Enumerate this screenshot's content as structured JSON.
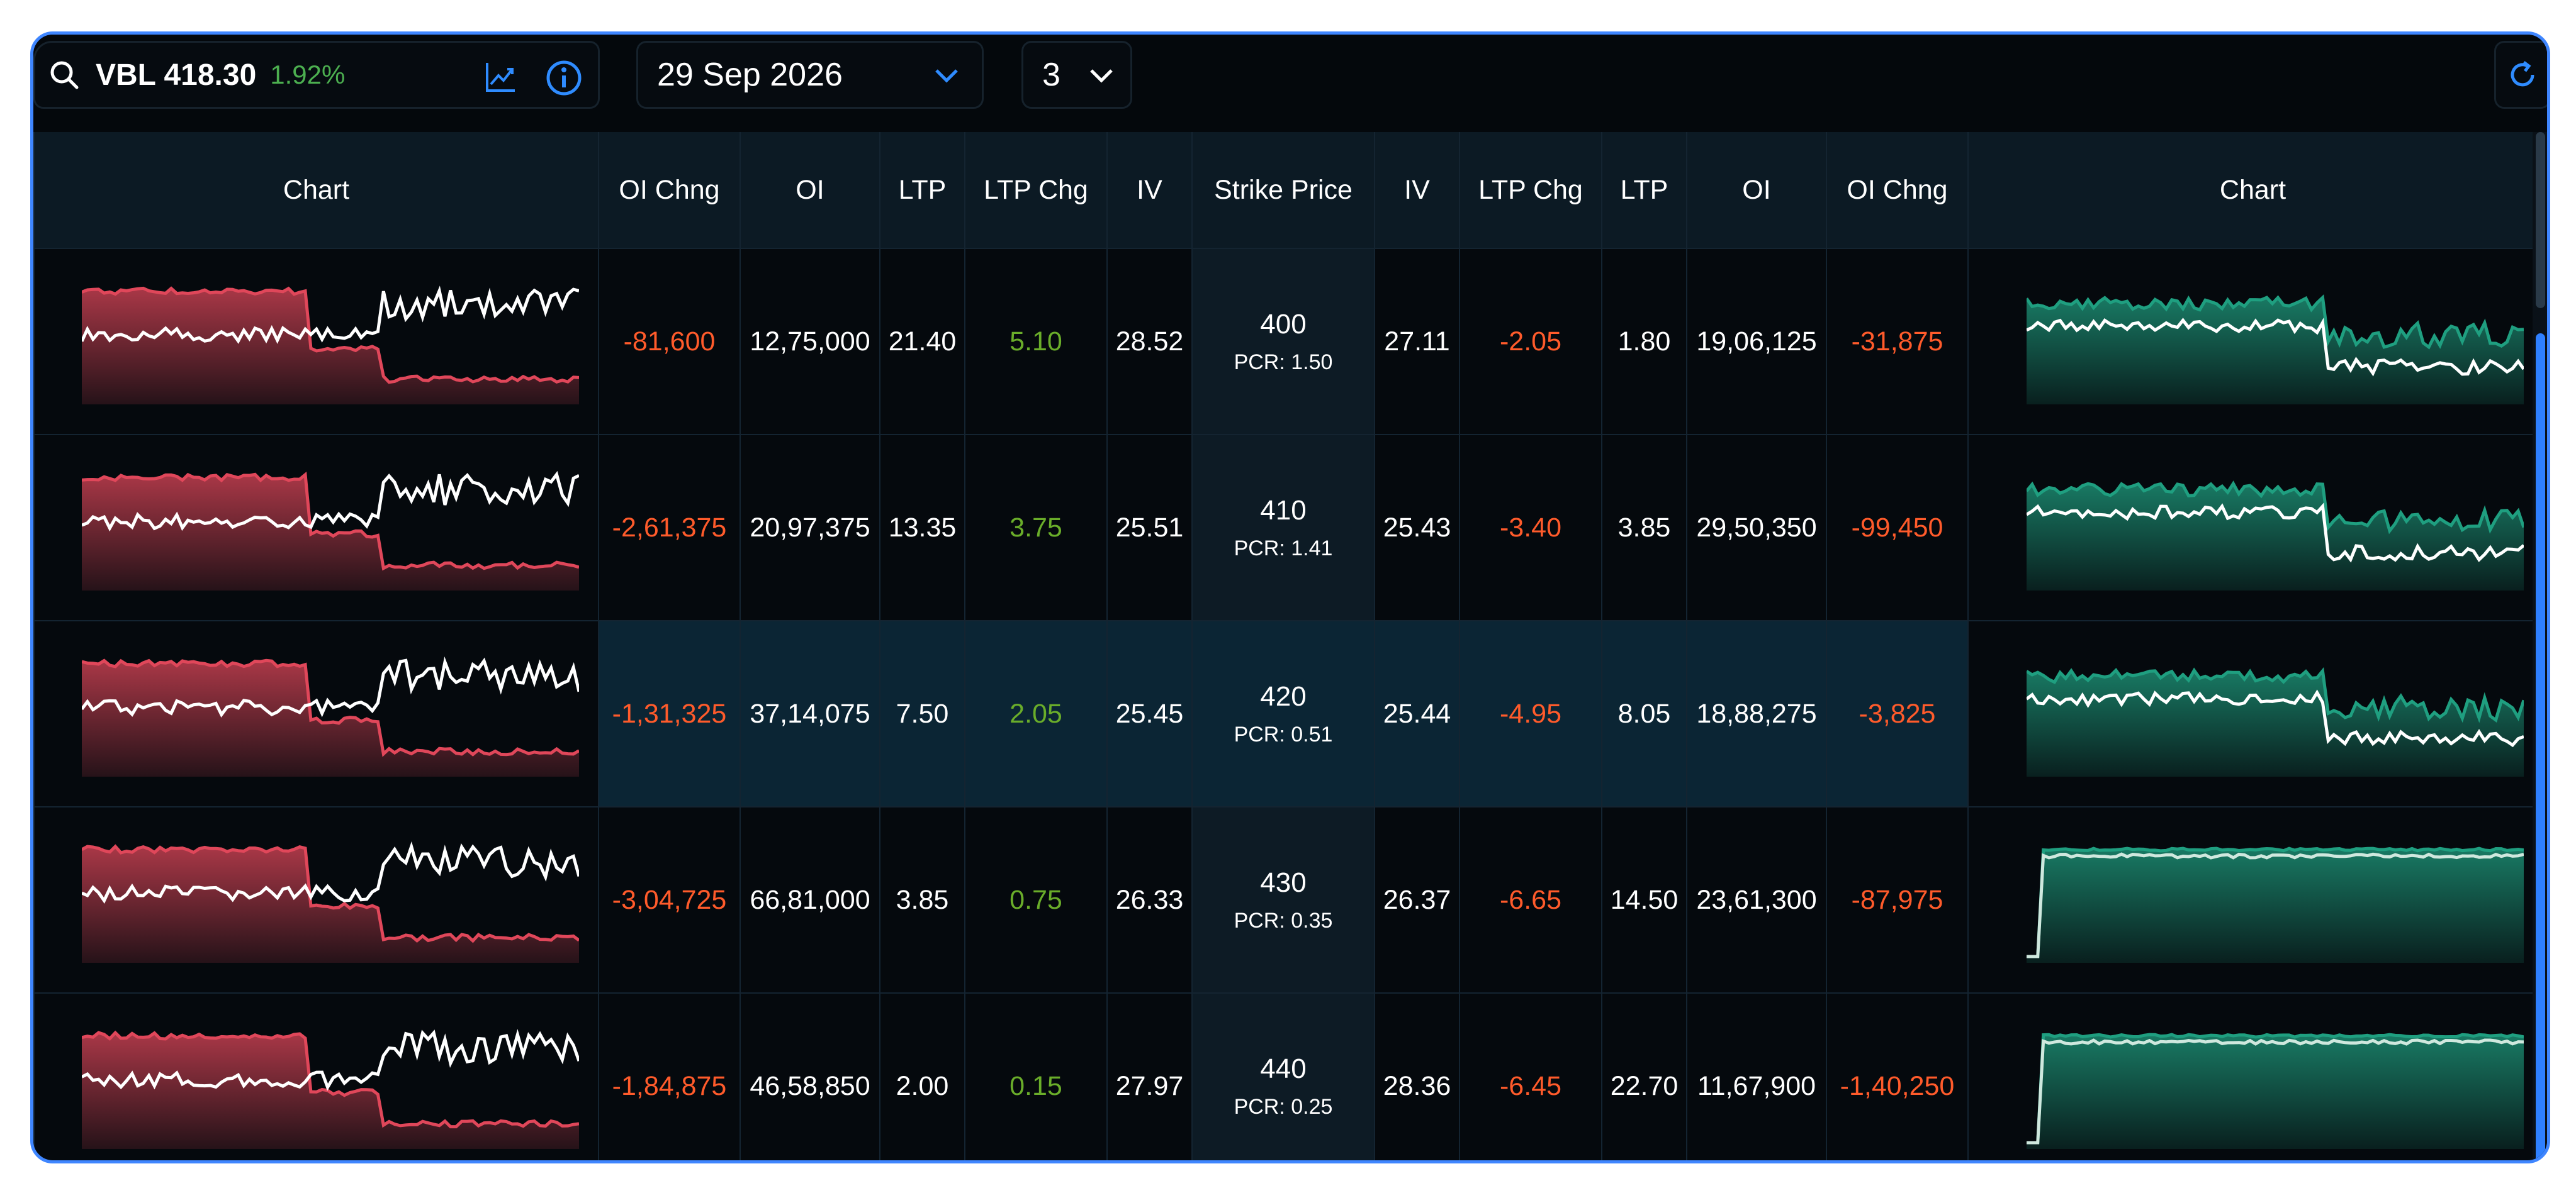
{
  "search": {
    "symbol": "VBL 418.30",
    "change_pct": "1.92%"
  },
  "expiry": {
    "selected": "29 Sep 2026"
  },
  "strike_count": {
    "selected": "3"
  },
  "columns": {
    "chart_left": "Chart",
    "call_oi_chng": "OI Chng",
    "call_oi": "OI",
    "call_ltp": "LTP",
    "call_ltp_chg": "LTP Chg",
    "call_iv": "IV",
    "strike": "Strike Price",
    "put_iv": "IV",
    "put_ltp_chg": "LTP Chg",
    "put_ltp": "LTP",
    "put_oi": "OI",
    "put_oi_chng": "OI Chng",
    "chart_right": "Chart"
  },
  "rows": [
    {
      "strike": "400",
      "pcr": "PCR: 1.50",
      "call": {
        "oi_chng": "-81,600",
        "oi": "12,75,000",
        "ltp": "21.40",
        "ltp_chg": "5.10",
        "iv": "28.52"
      },
      "put": {
        "iv": "27.11",
        "ltp_chg": "-2.05",
        "ltp": "1.80",
        "oi": "19,06,125",
        "oi_chng": "-31,875"
      }
    },
    {
      "strike": "410",
      "pcr": "PCR: 1.41",
      "call": {
        "oi_chng": "-2,61,375",
        "oi": "20,97,375",
        "ltp": "13.35",
        "ltp_chg": "3.75",
        "iv": "25.51"
      },
      "put": {
        "iv": "25.43",
        "ltp_chg": "-3.40",
        "ltp": "3.85",
        "oi": "29,50,350",
        "oi_chng": "-99,450"
      }
    },
    {
      "strike": "420",
      "pcr": "PCR: 0.51",
      "call": {
        "oi_chng": "-1,31,325",
        "oi": "37,14,075",
        "ltp": "7.50",
        "ltp_chg": "2.05",
        "iv": "25.45"
      },
      "put": {
        "iv": "25.44",
        "ltp_chg": "-4.95",
        "ltp": "8.05",
        "oi": "18,88,275",
        "oi_chng": "-3,825"
      }
    },
    {
      "strike": "430",
      "pcr": "PCR: 0.35",
      "call": {
        "oi_chng": "-3,04,725",
        "oi": "66,81,000",
        "ltp": "3.85",
        "ltp_chg": "0.75",
        "iv": "26.33"
      },
      "put": {
        "iv": "26.37",
        "ltp_chg": "-6.65",
        "ltp": "14.50",
        "oi": "23,61,300",
        "oi_chng": "-87,975"
      }
    },
    {
      "strike": "440",
      "pcr": "PCR: 0.25",
      "call": {
        "oi_chng": "-1,84,875",
        "oi": "46,58,850",
        "ltp": "2.00",
        "ltp_chg": "0.15",
        "iv": "27.97"
      },
      "put": {
        "iv": "28.36",
        "ltp_chg": "-6.45",
        "ltp": "22.70",
        "oi": "11,67,900",
        "oi_chng": "-1,40,250"
      }
    }
  ],
  "colors": {
    "call_chart": "#e0475a",
    "put_chart": "#1f9f80",
    "negative": "#ff5b2b",
    "positive": "#6aad2a",
    "accent": "#3f86ff",
    "highlight_row": "#0b2534"
  },
  "icons": {
    "search": "search-icon",
    "chart": "trend-chart-icon",
    "info": "info-icon",
    "dropdown": "chevron-down-icon",
    "refresh": "refresh-icon"
  }
}
